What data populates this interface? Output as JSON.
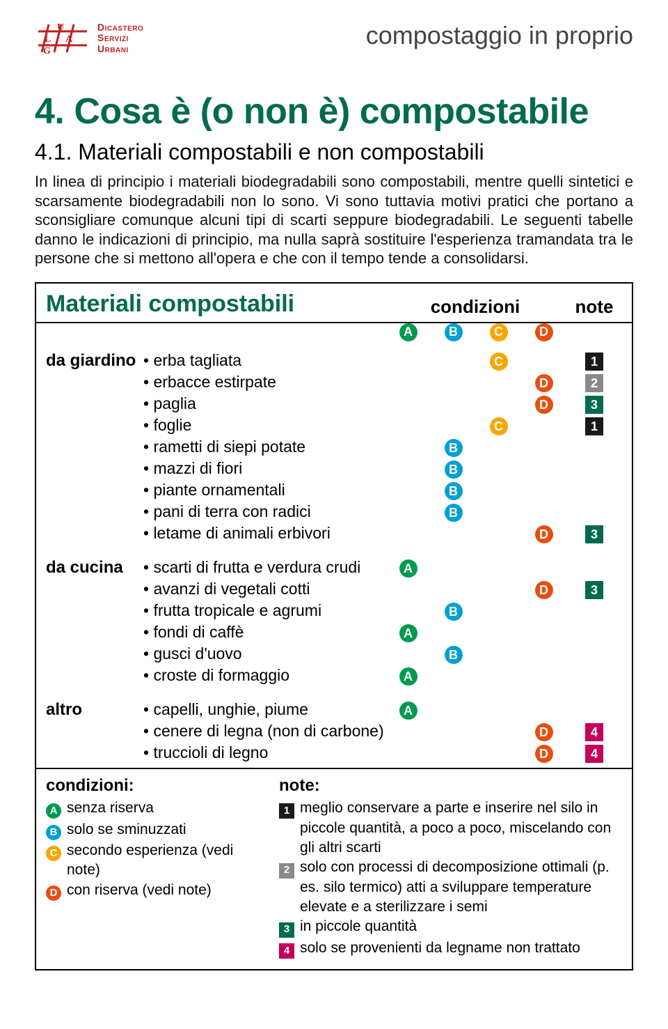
{
  "colors": {
    "A": "#009a4e",
    "B": "#00a0d2",
    "C": "#f7a600",
    "D": "#e84e0f",
    "note1": "#1a1a1a",
    "note2": "#8a8a8a",
    "note3": "#006b4f",
    "note4": "#c4005b",
    "green_title": "#006b4f",
    "logo_red": "#c02020"
  },
  "header": {
    "org_lines": [
      "Dicastero",
      "Servizi",
      "Urbani"
    ],
    "page_topic": "compostaggio in proprio"
  },
  "titles": {
    "main": "4. Cosa è (o non è) compostabile",
    "sub": "4.1. Materiali compostabili e non compostabili"
  },
  "intro": "In linea di principio i materiali biodegradabili sono compostabili, mentre quelli sintetici e scarsamente biodegradabili non lo sono. Vi sono tuttavia motivi pratici che portano a sconsigliare comunque alcuni tipi di scarti seppure biodegradabili. Le seguenti tabelle danno le indicazioni di principio, ma nulla saprà sostituire l'esperienza tramandata tra le persone che si mettono all'opera e che con il tempo tende a consolidarsi.",
  "table": {
    "title": "Materiali compostabili",
    "cond_label": "condizioni",
    "note_label": "note",
    "cond_keys": [
      "A",
      "B",
      "C",
      "D"
    ],
    "sections": [
      {
        "category": "da giardino",
        "rows": [
          {
            "label": "erba tagliata",
            "cond": {
              "C": true
            },
            "note": "1"
          },
          {
            "label": "erbacce estirpate",
            "cond": {
              "D": true
            },
            "note": "2"
          },
          {
            "label": "paglia",
            "cond": {
              "D": true
            },
            "note": "3"
          },
          {
            "label": "foglie",
            "cond": {
              "C": true
            },
            "note": "1"
          },
          {
            "label": "rametti di siepi potate",
            "cond": {
              "B": true
            }
          },
          {
            "label": "mazzi di fiori",
            "cond": {
              "B": true
            }
          },
          {
            "label": "piante ornamentali",
            "cond": {
              "B": true
            }
          },
          {
            "label": "pani di terra con radici",
            "cond": {
              "B": true
            }
          },
          {
            "label": "letame di animali erbivori",
            "cond": {
              "D": true
            },
            "note": "3"
          }
        ]
      },
      {
        "category": "da cucina",
        "rows": [
          {
            "label": "scarti di frutta e verdura crudi",
            "cond": {
              "A": true
            }
          },
          {
            "label": "avanzi di vegetali cotti",
            "cond": {
              "D": true
            },
            "note": "3"
          },
          {
            "label": "frutta tropicale e agrumi",
            "cond": {
              "B": true
            }
          },
          {
            "label": "fondi di caffè",
            "cond": {
              "A": true
            }
          },
          {
            "label": "gusci d'uovo",
            "cond": {
              "B": true
            }
          },
          {
            "label": "croste di formaggio",
            "cond": {
              "A": true
            }
          }
        ]
      },
      {
        "category": "altro",
        "rows": [
          {
            "label": "capelli, unghie, piume",
            "cond": {
              "A": true
            }
          },
          {
            "label": "cenere di legna (non di carbone)",
            "cond": {
              "D": true
            },
            "note": "4"
          },
          {
            "label": "truccioli di legno",
            "cond": {
              "D": true
            },
            "note": "4"
          }
        ]
      }
    ]
  },
  "legend": {
    "cond_title": "condizioni:",
    "cond_items": [
      {
        "key": "A",
        "text": "senza riserva"
      },
      {
        "key": "B",
        "text": "solo se sminuzzati"
      },
      {
        "key": "C",
        "text": "secondo esperienza (vedi note)"
      },
      {
        "key": "D",
        "text": "con riserva (vedi note)"
      }
    ],
    "note_title": "note:",
    "note_items": [
      {
        "key": "1",
        "text": "meglio conservare a parte e inserire nel silo in piccole quantità, a poco a poco, miscelando con gli altri scarti"
      },
      {
        "key": "2",
        "text": "solo con processi di decomposizione ottimali (p. es. silo termico) atti a sviluppare temperature elevate e a sterilizzare i semi"
      },
      {
        "key": "3",
        "text": "in piccole quantità"
      },
      {
        "key": "4",
        "text": "solo se provenienti da legname non trattato"
      }
    ]
  }
}
